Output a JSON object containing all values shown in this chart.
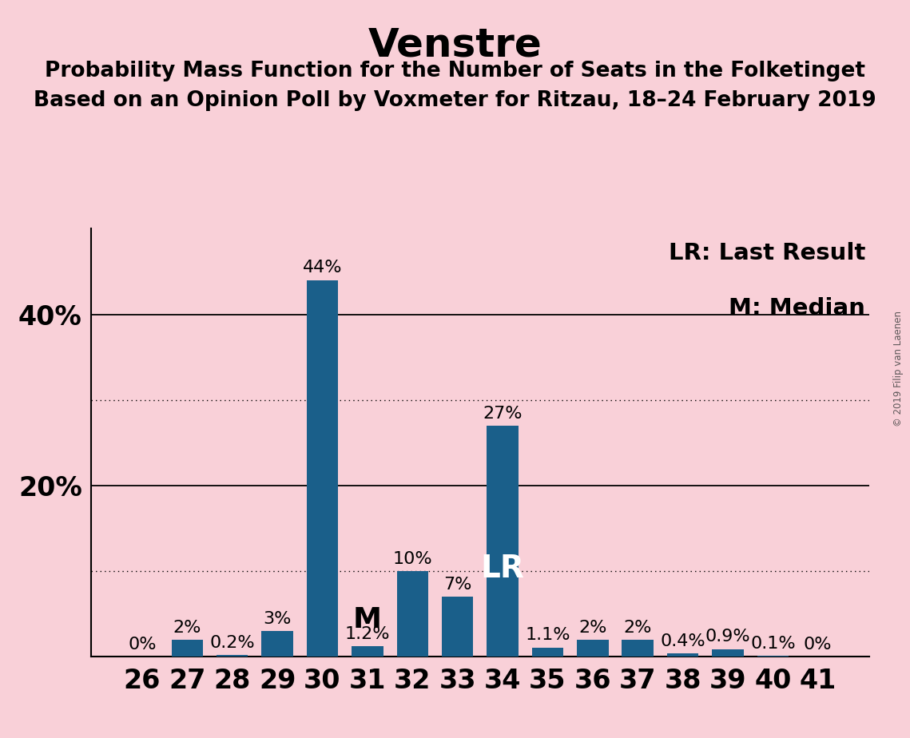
{
  "title": "Venstre",
  "subtitle1": "Probability Mass Function for the Number of Seats in the Folketinget",
  "subtitle2": "Based on an Opinion Poll by Voxmeter for Ritzau, 18–24 February 2019",
  "categories": [
    26,
    27,
    28,
    29,
    30,
    31,
    32,
    33,
    34,
    35,
    36,
    37,
    38,
    39,
    40,
    41
  ],
  "values": [
    0.0,
    2.0,
    0.2,
    3.0,
    44.0,
    1.2,
    10.0,
    7.0,
    27.0,
    1.1,
    2.0,
    2.0,
    0.4,
    0.9,
    0.1,
    0.0
  ],
  "labels": [
    "0%",
    "2%",
    "0.2%",
    "3%",
    "44%",
    "1.2%",
    "10%",
    "7%",
    "27%",
    "1.1%",
    "2%",
    "2%",
    "0.4%",
    "0.9%",
    "0.1%",
    "0%"
  ],
  "bar_color": "#1a5f8a",
  "background_color": "#f9d0d8",
  "text_color": "#000000",
  "ylim": [
    0,
    50
  ],
  "solid_yticks": [
    20,
    40
  ],
  "dotted_yticks": [
    10,
    30
  ],
  "legend_text1": "LR: Last Result",
  "legend_text2": "M: Median",
  "lr_seat": 34,
  "median_seat": 31,
  "watermark": "© 2019 Filip van Laenen",
  "title_fontsize": 36,
  "subtitle_fontsize": 19,
  "axis_tick_fontsize": 24,
  "bar_label_fontsize": 16,
  "legend_fontsize": 21,
  "lr_fontsize": 28,
  "m_fontsize": 26
}
